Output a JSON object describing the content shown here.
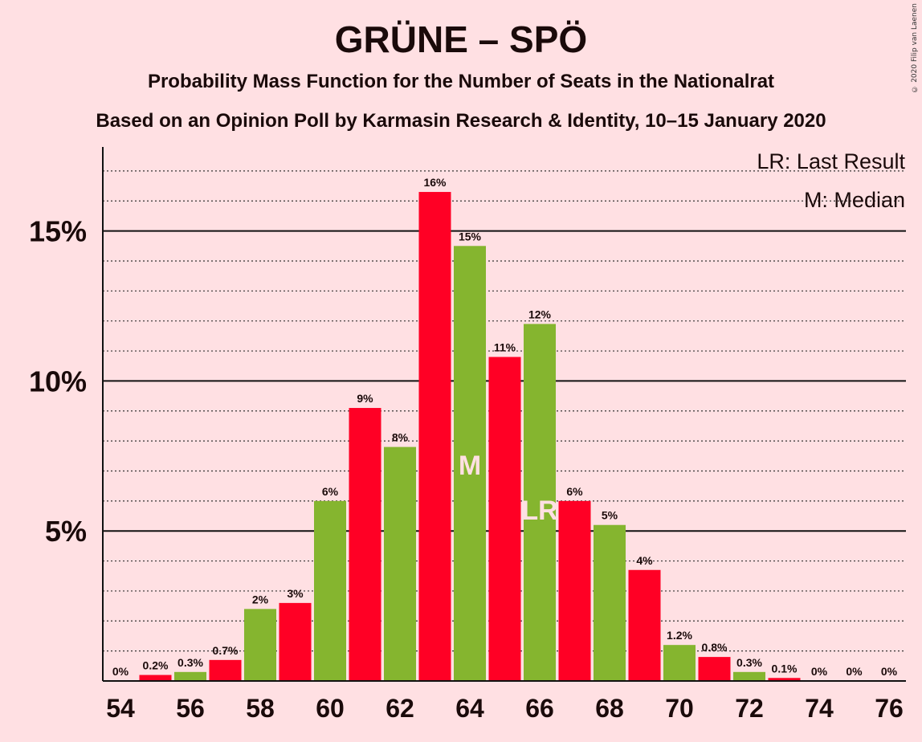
{
  "title": "GRÜNE – SPÖ",
  "subtitle1": "Probability Mass Function for the Number of Seats in the Nationalrat",
  "subtitle2": "Based on an Opinion Poll by Karmasin Research & Identity, 10–15 January 2020",
  "copyright": "© 2020 Filip van Laenen",
  "colors": {
    "background": "#ffe0e3",
    "red": "#ff0025",
    "green": "#85b52f",
    "text": "#1a0a0a"
  },
  "chart_data": {
    "type": "bar",
    "x": [
      54,
      55,
      56,
      57,
      58,
      59,
      60,
      61,
      62,
      63,
      64,
      65,
      66,
      67,
      68,
      69,
      70,
      71,
      72,
      73,
      74,
      75,
      76
    ],
    "values": [
      0,
      0.2,
      0.3,
      0.7,
      2.4,
      2.6,
      6.0,
      9.1,
      7.8,
      16.3,
      14.5,
      10.8,
      11.9,
      6.0,
      5.2,
      3.7,
      1.2,
      0.8,
      0.3,
      0.1,
      0,
      0,
      0
    ],
    "labels": [
      "0%",
      "0.2%",
      "0.3%",
      "0.7%",
      "2%",
      "3%",
      "6%",
      "9%",
      "8%",
      "16%",
      "15%",
      "11%",
      "12%",
      "6%",
      "5%",
      "4%",
      "1.2%",
      "0.8%",
      "0.3%",
      "0.1%",
      "0%",
      "0%",
      "0%"
    ],
    "bar_colors": [
      "green",
      "red",
      "green",
      "red",
      "green",
      "red",
      "green",
      "red",
      "green",
      "red",
      "green",
      "red",
      "green",
      "red",
      "green",
      "red",
      "green",
      "red",
      "green",
      "red",
      "green",
      "red",
      "green"
    ],
    "x_ticks": [
      "54",
      "56",
      "58",
      "60",
      "62",
      "64",
      "66",
      "68",
      "70",
      "72",
      "74",
      "76"
    ],
    "y_ticks": [
      {
        "value": 5,
        "label": "5%"
      },
      {
        "value": 10,
        "label": "10%"
      },
      {
        "value": 15,
        "label": "15%"
      }
    ],
    "ylim": [
      0,
      17.8
    ],
    "minor_grid_step": 1,
    "median_seat": 64,
    "median_marker": "M",
    "last_result_seat": 66,
    "last_result_marker": "LR",
    "legend": [
      "LR: Last Result",
      "M: Median"
    ],
    "legend_position": "top-right"
  }
}
